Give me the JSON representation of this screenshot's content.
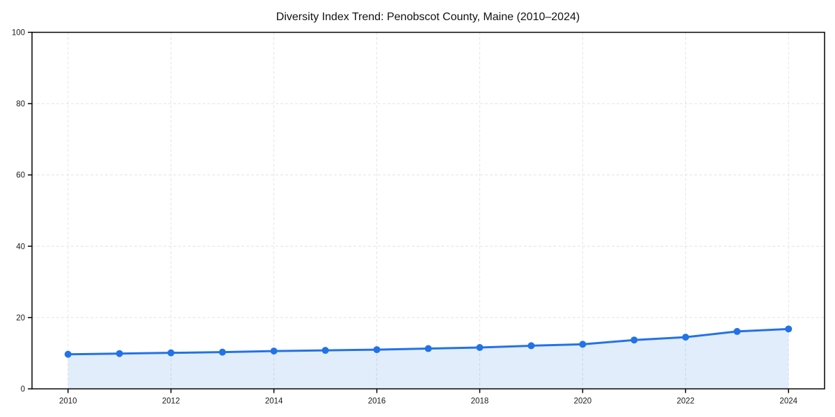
{
  "chart_data": {
    "type": "area",
    "title": "Diversity Index Trend: Penobscot County, Maine (2010–2024)",
    "xlabel": "",
    "ylabel": "",
    "x": [
      2010,
      2011,
      2012,
      2013,
      2014,
      2015,
      2016,
      2017,
      2018,
      2019,
      2020,
      2021,
      2022,
      2023,
      2024
    ],
    "values": [
      9.7,
      9.9,
      10.1,
      10.3,
      10.6,
      10.8,
      11.0,
      11.3,
      11.6,
      12.1,
      12.5,
      13.7,
      14.5,
      16.1,
      16.8
    ],
    "xticks": [
      2010,
      2012,
      2014,
      2016,
      2018,
      2020,
      2022,
      2024
    ],
    "yticks": [
      0,
      20,
      40,
      60,
      80,
      100
    ],
    "xlim": [
      2009.3,
      2024.7
    ],
    "ylim": [
      0,
      100
    ],
    "grid": true,
    "grid_style": "dashed",
    "legend": "none",
    "marker": "circle",
    "colors": {
      "line": "#2272e8",
      "fill": "rgba(34,114,232,0.13)",
      "grid": "#e4e4e4",
      "axis": "#000000",
      "tick_label": "#1a1a1a",
      "title": "#111111",
      "background": "#ffffff"
    }
  }
}
